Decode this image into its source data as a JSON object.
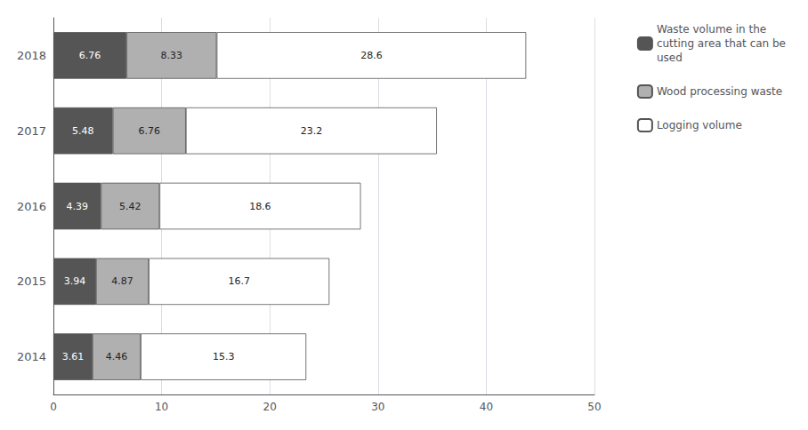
{
  "chart_data": {
    "type": "bar",
    "orientation": "horizontal",
    "stacked": true,
    "data_labels": true,
    "grid": true,
    "legend": "upper right",
    "categories": [
      "2014",
      "2015",
      "2016",
      "2017",
      "2018"
    ],
    "series": [
      {
        "name": "Waste volume in the\ncutting area that can be\nused",
        "color": "#555555",
        "values": [
          3.61,
          3.94,
          4.39,
          5.48,
          6.76
        ]
      },
      {
        "name": "Wood processing waste",
        "color": "#b0b0b0",
        "values": [
          4.46,
          4.87,
          5.42,
          6.76,
          8.33
        ]
      },
      {
        "name": "Logging volume",
        "color": "#ffffff",
        "values": [
          15.3,
          16.7,
          18.6,
          23.2,
          28.6
        ]
      }
    ],
    "xlim": [
      0,
      50
    ],
    "xticks": [
      0,
      10,
      20,
      30,
      40,
      50
    ]
  }
}
